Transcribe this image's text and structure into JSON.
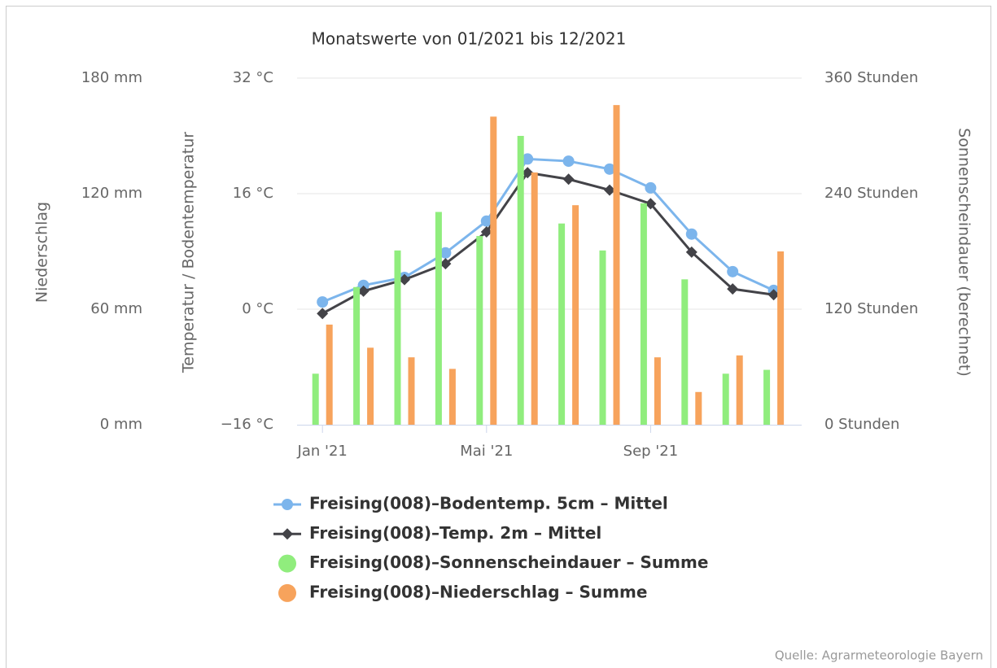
{
  "chart_data": {
    "type": "combo",
    "title": "Monatswerte von 01/2021 bis 12/2021",
    "credit": "Quelle: Agrarmeteorologie Bayern",
    "categories": [
      "Jan '21",
      null,
      null,
      null,
      "Mai '21",
      null,
      null,
      null,
      "Sep '21",
      null,
      null,
      null
    ],
    "y_label": "Niederschlag",
    "ylim": [
      0,
      180
    ],
    "yticks": [
      {
        "value": 0,
        "label": "0 mm"
      },
      {
        "value": 60,
        "label": "60 mm"
      },
      {
        "value": 120,
        "label": "120 mm"
      },
      {
        "value": 180,
        "label": "180 mm"
      }
    ],
    "y2_label": "Temperatur / Bodentemperatur",
    "y2lim": [
      -16,
      32
    ],
    "y2ticks": [
      {
        "value": -16,
        "label": "−16 °C"
      },
      {
        "value": 0,
        "label": "0 °C"
      },
      {
        "value": 16,
        "label": "16 °C"
      },
      {
        "value": 32,
        "label": "32 °C"
      }
    ],
    "y3_label": "Sonnenscheindauer (berechnet)",
    "y3lim": [
      0,
      360
    ],
    "y3ticks": [
      {
        "value": 0,
        "label": "0 Stunden"
      },
      {
        "value": 120,
        "label": "120 Stunden"
      },
      {
        "value": 240,
        "label": "240 Stunden"
      },
      {
        "value": 360,
        "label": "360 Stunden"
      }
    ],
    "grid": true,
    "series": [
      {
        "name": "Freising(008)–Bodentemp. 5cm – Mittel",
        "type": "line",
        "marker": "circle",
        "axis": "y2",
        "color": "#7cb5ec",
        "values": [
          1.0,
          3.3,
          4.4,
          7.8,
          12.2,
          20.8,
          20.5,
          19.4,
          16.8,
          10.4,
          5.2,
          2.6
        ]
      },
      {
        "name": "Freising(008)–Temp. 2m – Mittel",
        "type": "line",
        "marker": "diamond",
        "axis": "y2",
        "color": "#434348",
        "values": [
          -0.6,
          2.5,
          4.1,
          6.3,
          10.7,
          18.9,
          18.0,
          16.5,
          14.6,
          7.9,
          2.8,
          2.0
        ]
      },
      {
        "name": "Freising(008)–Sonnenscheindauer – Summe",
        "type": "bar",
        "axis": "y3",
        "color": "#90ed7d",
        "values": [
          53,
          143,
          181,
          221,
          196,
          300,
          209,
          181,
          230,
          151,
          53,
          57
        ]
      },
      {
        "name": "Freising(008)–Niederschlag – Summe",
        "type": "bar",
        "axis": "y",
        "color": "#f7a35c",
        "values": [
          52,
          40,
          35,
          29,
          160,
          131,
          114,
          166,
          35,
          17,
          36,
          90
        ]
      }
    ]
  }
}
